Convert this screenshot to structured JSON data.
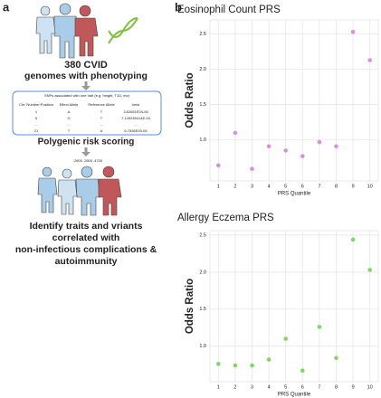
{
  "panel_labels": [
    "a",
    "b"
  ],
  "panel_a": {
    "cohort": "380 CVID",
    "cohort_sub": "genomes with phenotyping",
    "table": {
      "title": "SNPs associated with one trait (e.g. height, T1D, etc)",
      "columns": [
        "Chr. Number:Position",
        "Effect Allele",
        "Reference Allele",
        "beta"
      ],
      "rows": [
        [
          "1",
          "A",
          "T",
          "3.62651E04-06"
        ],
        [
          "5",
          "G",
          "T",
          "7.149245414E-04"
        ],
        [
          "...",
          "...",
          "...",
          "..."
        ],
        [
          "21",
          "T",
          "A",
          "6.7526E03-05"
        ]
      ]
    },
    "step": "Polygenic risk scoring",
    "scores": ".2600   .2600   .4700",
    "outcome": [
      "Identify traits and vriants",
      "correlated with",
      "non-infectious complications &",
      "autoimmunity"
    ]
  },
  "chart_data": [
    {
      "type": "scatter",
      "title": "Eosinophil Count PRS",
      "x_label": "PRS Quantile",
      "y_label": "Odds Ratio",
      "x": [
        1,
        2,
        3,
        4,
        5,
        6,
        7,
        8,
        9,
        10
      ],
      "values": [
        0.64,
        1.1,
        0.59,
        0.91,
        0.85,
        0.77,
        0.97,
        0.91,
        2.53,
        2.13
      ],
      "color": "#d98ee6",
      "xlim": [
        0.5,
        10.5
      ],
      "xticks": [
        1,
        2,
        3,
        4,
        5,
        6,
        7,
        8,
        9,
        10
      ],
      "ylim": [
        0.42,
        2.7
      ],
      "yticks": [
        {
          "value": 1,
          "label": "1.0"
        },
        1.5,
        {
          "value": 2,
          "label": "2.0"
        },
        2.5
      ],
      "grid": true
    },
    {
      "type": "scatter",
      "title": "Allergy Eczema PRS",
      "x_label": "PRS Quantile",
      "y_label": "Odds Ratio",
      "x": [
        1,
        2,
        3,
        4,
        5,
        6,
        7,
        8,
        9,
        10
      ],
      "values": [
        0.76,
        0.74,
        0.74,
        0.82,
        1.1,
        0.67,
        1.26,
        0.84,
        2.44,
        2.03
      ],
      "color": "#7fd46a",
      "xlim": [
        0.5,
        10.5
      ],
      "xticks": [
        1,
        2,
        3,
        4,
        5,
        6,
        7,
        8,
        9,
        10
      ],
      "ylim": [
        0.52,
        2.56
      ],
      "yticks": [
        {
          "value": 1,
          "label": "1.0"
        },
        1.5,
        {
          "value": 2,
          "label": "2.0"
        },
        2.5
      ],
      "grid": true
    }
  ]
}
